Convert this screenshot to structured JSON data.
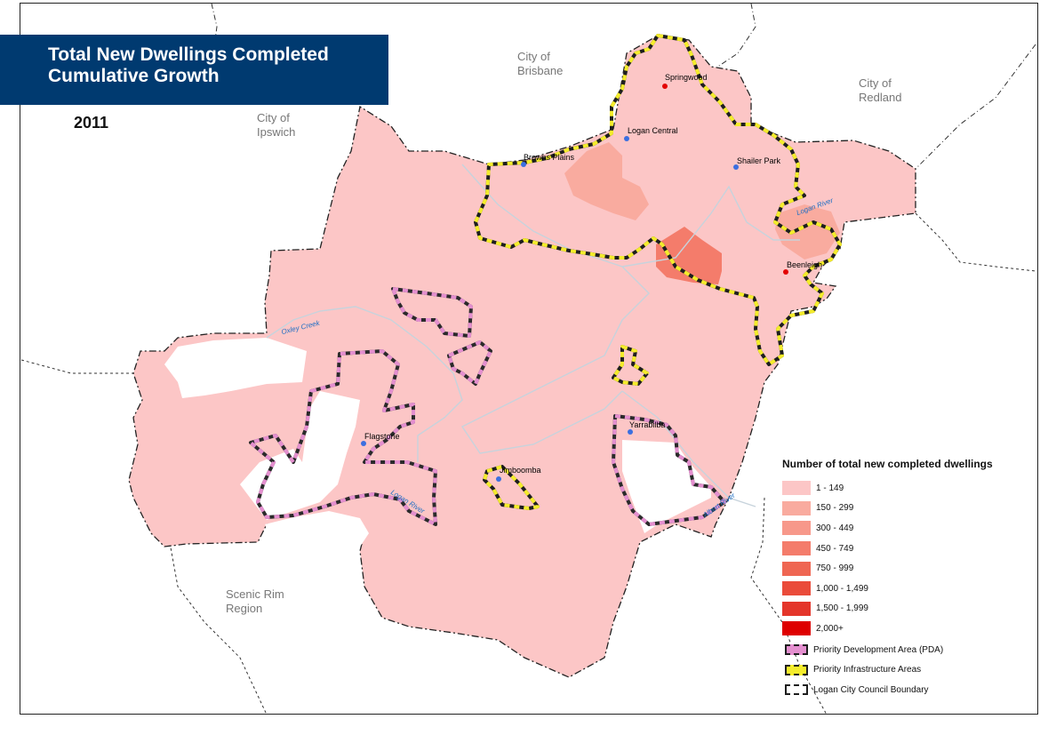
{
  "title": {
    "line1": "Total New Dwellings Completed",
    "line2": "Cumulative Growth"
  },
  "year": "2011",
  "regions": {
    "brisbane": [
      "City of",
      "Brisbane"
    ],
    "redland": [
      "City of",
      "Redland"
    ],
    "ipswich": [
      "City of",
      "Ipswich"
    ],
    "scenic_rim": [
      "Scenic Rim",
      "Region"
    ]
  },
  "places": [
    {
      "name": "Springwood",
      "dot": "red"
    },
    {
      "name": "Logan Central",
      "dot": "blue"
    },
    {
      "name": "Browns Plains",
      "dot": "blue"
    },
    {
      "name": "Shailer Park",
      "dot": "blue"
    },
    {
      "name": "Beenleigh",
      "dot": "red"
    },
    {
      "name": "Flagstone",
      "dot": "blue"
    },
    {
      "name": "Yarrabilba",
      "dot": "blue"
    },
    {
      "name": "Jimboomba",
      "dot": "blue"
    }
  ],
  "rivers": [
    "Oxley Creek",
    "Logan River",
    "Logan River",
    "Albert River"
  ],
  "legend": {
    "title": "Number of total new completed dwellings",
    "bins": [
      {
        "label": "1 - 149",
        "color": "#fcc6c6"
      },
      {
        "label": "150 - 299",
        "color": "#f9ab9f"
      },
      {
        "label": "300 - 449",
        "color": "#f7988a"
      },
      {
        "label": "450 - 749",
        "color": "#f47c6b"
      },
      {
        "label": "750 - 999",
        "color": "#ef6652"
      },
      {
        "label": "1,000 - 1,499",
        "color": "#ea4b3a"
      },
      {
        "label": "1,500 - 1,999",
        "color": "#e4352a"
      },
      {
        "label": "2,000+",
        "color": "#de0000"
      }
    ],
    "lines": [
      {
        "label": "Priority Development Area (PDA)",
        "color": "#e48fcf"
      },
      {
        "label": "Priority Infrastructure Areas",
        "color": "#f4ec2c"
      },
      {
        "label": "Logan City Council Boundary",
        "color": "#ffffff"
      }
    ]
  },
  "colors": {
    "banner": "#003a70",
    "region_label": "#777777",
    "river": "#1f6fc4",
    "dot_red": "#e30000",
    "dot_blue": "#3b6fe0"
  }
}
